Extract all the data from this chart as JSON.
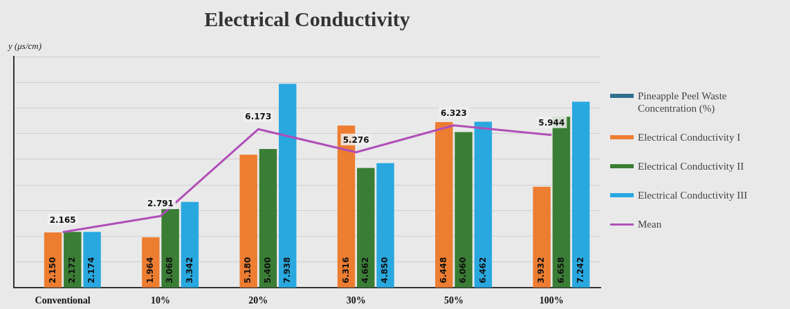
{
  "chart_data": {
    "type": "bar",
    "title": "Electrical Conductivity",
    "ylabel": "y (μs/cm)",
    "categories": [
      "Conventional",
      "10%",
      "20%",
      "30%",
      "50%",
      "100%"
    ],
    "series": [
      {
        "name": "Pineapple Peel Waste Concentration (%)",
        "color": "#2e6f8e",
        "values": [
          null,
          null,
          null,
          null,
          null,
          null
        ]
      },
      {
        "name": "Electrical Conductivity I",
        "color": "#ed7d31",
        "values": [
          2.15,
          1.964,
          5.18,
          6.316,
          6.448,
          3.932
        ],
        "value_labels": [
          "2.150",
          "1.964",
          "5.180",
          "6.316",
          "6.448",
          "3.932"
        ]
      },
      {
        "name": "Electrical Conductivity II",
        "color": "#3a7d35",
        "values": [
          2.172,
          3.068,
          5.4,
          4.662,
          6.06,
          6.658
        ],
        "value_labels": [
          "2.172",
          "3.068",
          "5.400",
          "4.662",
          "6.060",
          "6.658"
        ]
      },
      {
        "name": "Electrical Conductivity III",
        "color": "#29a8e0",
        "values": [
          2.174,
          3.342,
          7.938,
          4.85,
          6.462,
          7.242
        ],
        "value_labels": [
          "2.174",
          "3.342",
          "7.938",
          "4.850",
          "6.462",
          "7.242"
        ]
      },
      {
        "name": "Mean",
        "type": "line",
        "color": "#b04fb8",
        "values": [
          2.165,
          2.791,
          6.173,
          5.276,
          6.323,
          5.944
        ],
        "value_labels": [
          "2.165",
          "2.791",
          "6.173",
          "5.276",
          "6.323",
          "5.944"
        ]
      }
    ],
    "ylim": [
      0,
      9
    ],
    "yticks": [
      {
        "value": 0,
        "label": null
      },
      {
        "value": 1,
        "label": null
      },
      {
        "value": 2,
        "label": null
      },
      {
        "value": 3,
        "label": null
      },
      {
        "value": 4,
        "label": null
      },
      {
        "value": 5,
        "label": null
      },
      {
        "value": 6,
        "label": null
      },
      {
        "value": 7,
        "label": null
      },
      {
        "value": 8,
        "label": null
      },
      {
        "value": 9,
        "label": null
      }
    ],
    "tick_labels": "x",
    "grid": "y",
    "legend": "right",
    "marker": "none"
  }
}
